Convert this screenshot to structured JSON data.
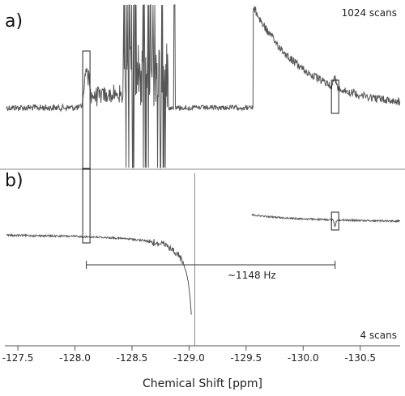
{
  "chart_data": {
    "type": "line",
    "xlabel": "Chemical Shift [ppm]",
    "xlim": [
      -127.4,
      -130.85
    ],
    "xticks": [
      -127.5,
      -128.0,
      -128.5,
      -129.0,
      -129.5,
      -130.0,
      -130.5
    ],
    "xtick_labels": [
      "-127.5",
      "-128.0",
      "-128.5",
      "-129.0",
      "-129.5",
      "-130.0",
      "-130.5"
    ],
    "grid": false,
    "panels": [
      {
        "label": "a)",
        "annotation": "1024 scans",
        "description": "Noisy spectrum with satellite peaks near -128.10 and -130.28 ppm and a dense cluster of truncated signals between -128.4 and -128.8 ppm; steep rising tail from -129.55 ppm.",
        "highlight_ppm": [
          -128.1,
          -130.28
        ]
      },
      {
        "label": "b)",
        "annotation": "4 scans",
        "description": "Dispersive line shape centered at -129.05 ppm (vertical line); left wing descends from baseline, right wing decays toward baseline from -129.55 ppm.",
        "center_ppm": -129.05,
        "highlight_ppm": [
          -128.1,
          -130.28
        ]
      }
    ],
    "coupling": {
      "label": "~1148 Hz",
      "from_ppm": -128.1,
      "to_ppm": -130.28
    }
  }
}
